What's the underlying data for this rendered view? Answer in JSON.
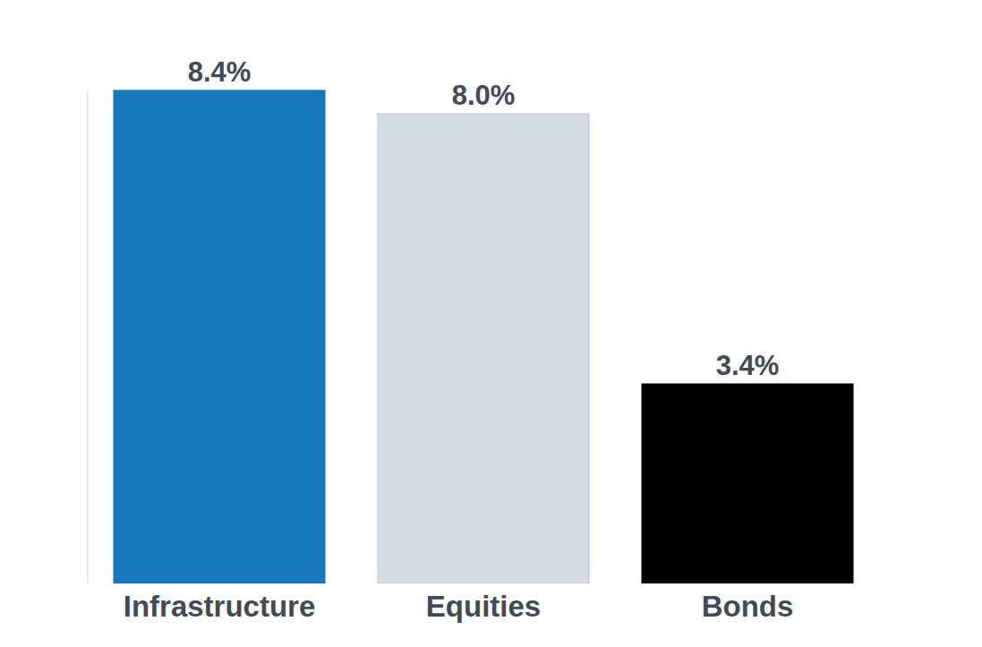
{
  "chart_data": {
    "type": "bar",
    "categories": [
      "Infrastructure",
      "Equities",
      "Bonds"
    ],
    "values": [
      8.4,
      8.0,
      3.4
    ],
    "value_labels": [
      "8.4%",
      "8.0%",
      "3.4%"
    ],
    "colors": [
      "#1878bc",
      "#d6dce5",
      "#000000"
    ],
    "ylim": [
      0,
      8.4
    ],
    "yticks": [],
    "grid": false,
    "data_labels": true,
    "tick_labels": "x"
  }
}
